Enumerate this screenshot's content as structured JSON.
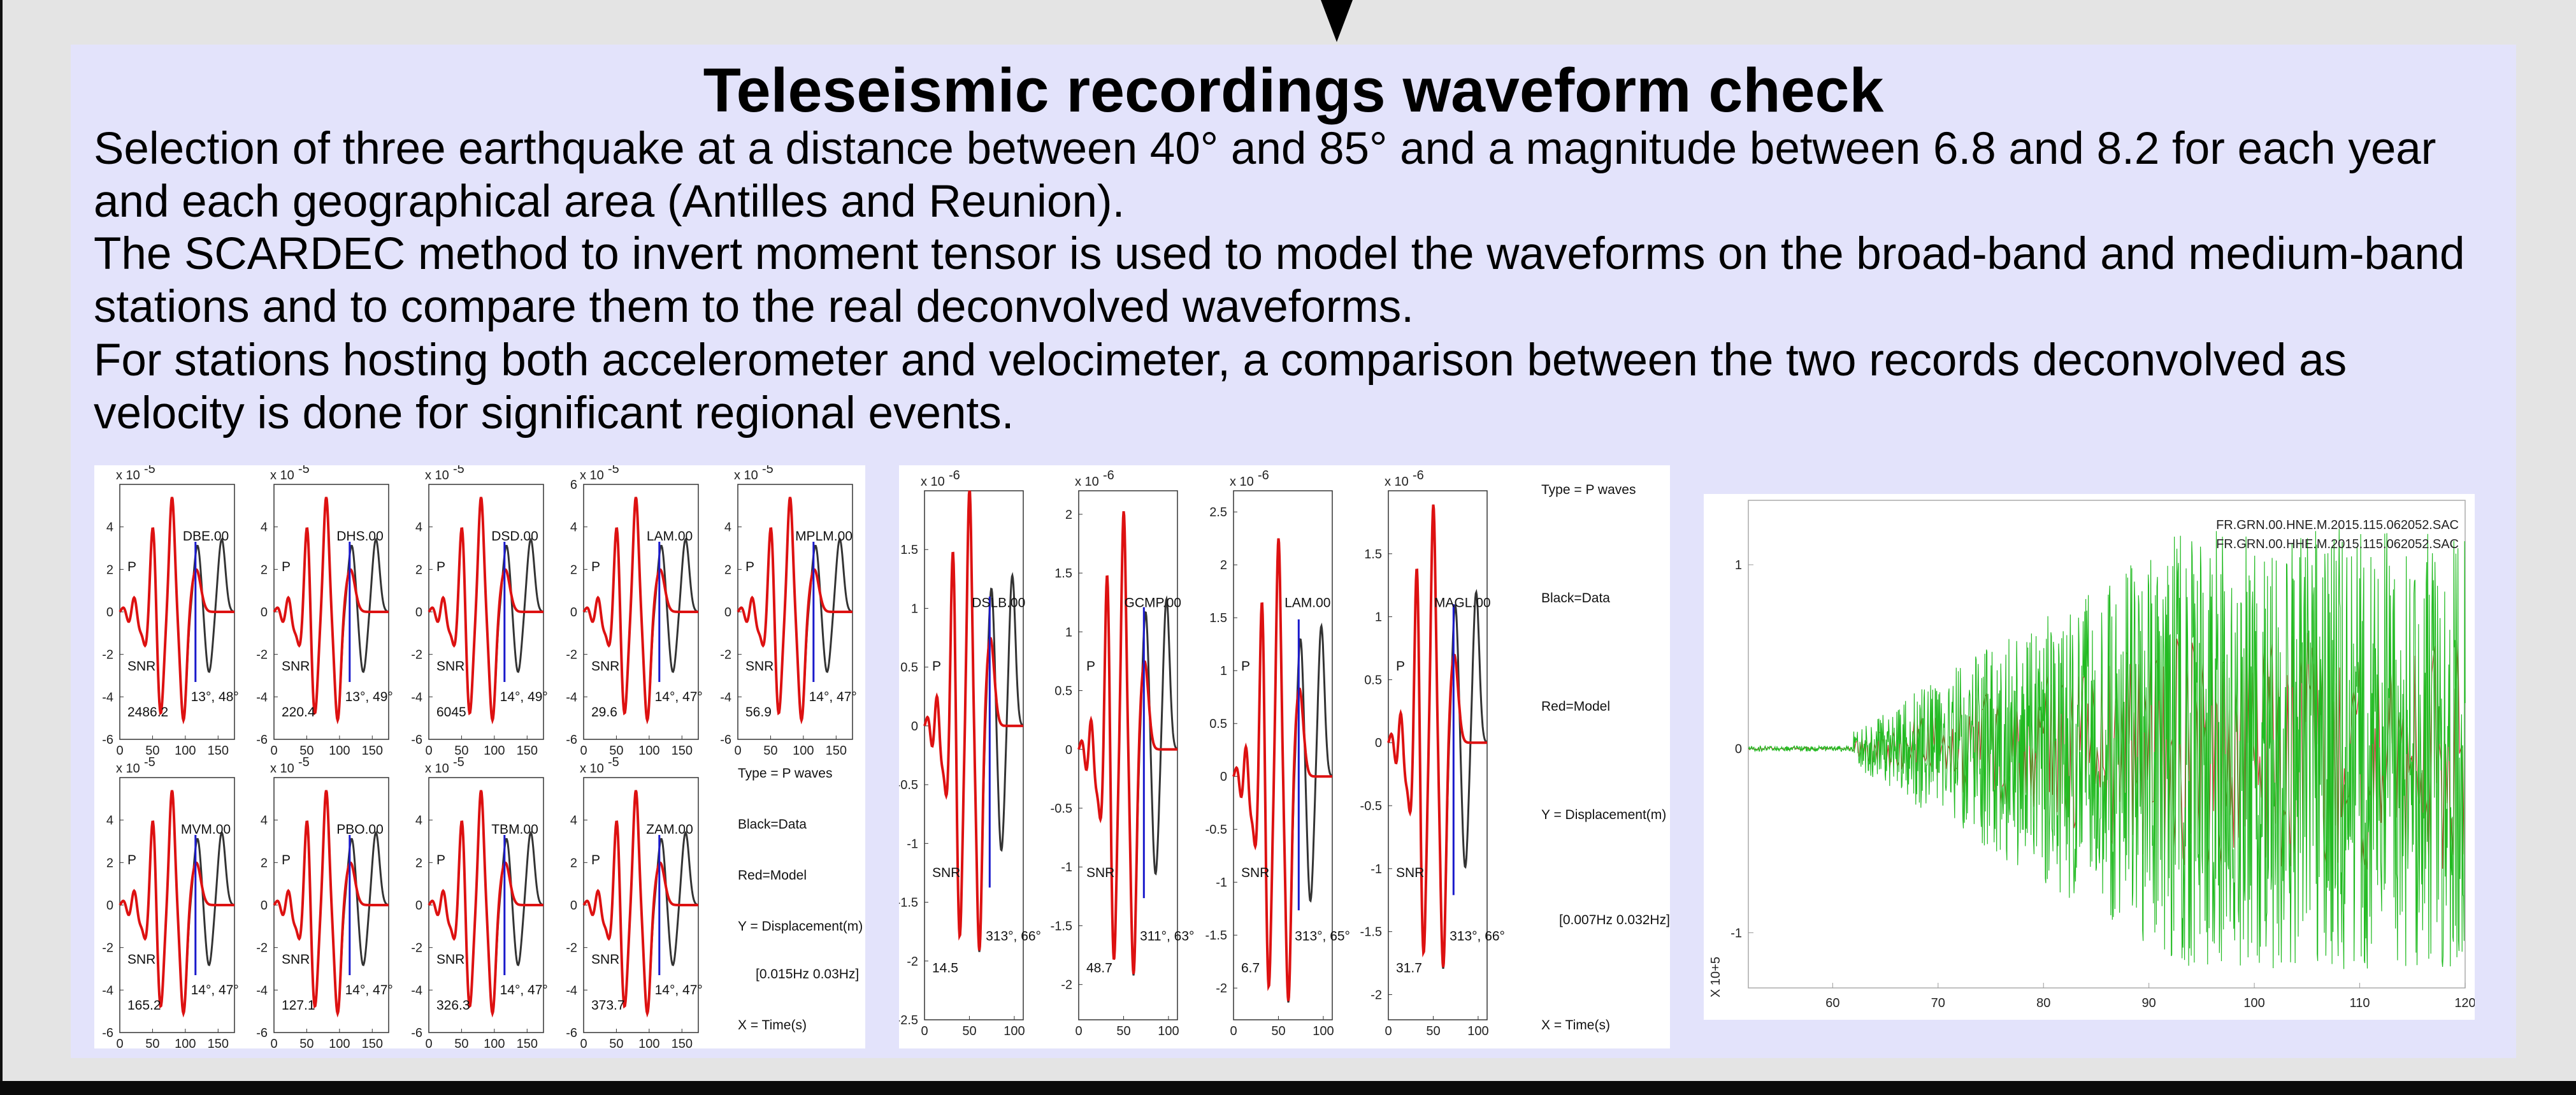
{
  "slide": {
    "title": "Teleseismic recordings waveform check",
    "paragraphs": [
      "Selection of three earthquake at a distance between 40° and 85° and a magnitude between 6.8 and 8.2 for each year and each geographical area (Antilles and Reunion).",
      "The SCARDEC method to invert moment tensor is used to model the waveforms on the broad-band and medium-band stations and to compare them to the real deconvolved waveforms.",
      "For stations hosting both accelerometer and velocimeter, a comparison between the two records deconvolved as velocity is done for significant regional events."
    ]
  },
  "colors": {
    "panel_bg": "#e3e3fb",
    "data_line": "#333333",
    "model_line": "#dd1111",
    "marker": "#1a1acc",
    "green_trace": "#22bb22",
    "red_trace": "#cc3333"
  },
  "chart_data": [
    {
      "type": "line",
      "figure": "figure-1",
      "legend": [
        "Type = P waves",
        "Black=Data",
        "Red=Model",
        "Y = Displacement(m)",
        "[0.015Hz 0.03Hz]",
        "X = Time(s)"
      ],
      "xticks": [
        0,
        50,
        100,
        150
      ],
      "xlim": [
        0,
        175
      ],
      "phase": "P",
      "snr_label": "SNR",
      "panels": [
        {
          "station": "DBE.00",
          "scale": "x 10",
          "exp": "-5",
          "yticks": [
            -6,
            -4,
            -2,
            0,
            2,
            4
          ],
          "ylim": [
            -6,
            6
          ],
          "snr": "2486.2",
          "angles": "13°, 48°"
        },
        {
          "station": "DHS.00",
          "scale": "x 10",
          "exp": "-5",
          "yticks": [
            -6,
            -4,
            -2,
            0,
            2,
            4
          ],
          "ylim": [
            -6,
            6
          ],
          "snr": "220.4",
          "angles": "13°, 49°"
        },
        {
          "station": "DSD.00",
          "scale": "x 10",
          "exp": "-5",
          "yticks": [
            -6,
            -4,
            -2,
            0,
            2,
            4
          ],
          "ylim": [
            -6,
            6
          ],
          "snr": "6045",
          "angles": "14°, 49°"
        },
        {
          "station": "LAM.00",
          "scale": "x 10",
          "exp": "-5",
          "yticks": [
            -6,
            -4,
            -2,
            0,
            2,
            4,
            6
          ],
          "ylim": [
            -6,
            6
          ],
          "snr": "29.6",
          "angles": "14°, 47°"
        },
        {
          "station": "MPLM.00",
          "scale": "x 10",
          "exp": "-5",
          "yticks": [
            -6,
            -4,
            -2,
            0,
            2,
            4
          ],
          "ylim": [
            -6,
            6
          ],
          "snr": "56.9",
          "angles": "14°, 47°"
        },
        {
          "station": "MVM.00",
          "scale": "x 10",
          "exp": "-5",
          "yticks": [
            -6,
            -4,
            -2,
            0,
            2,
            4
          ],
          "ylim": [
            -6,
            6
          ],
          "snr": "165.2",
          "angles": "14°, 47°"
        },
        {
          "station": "PBO.00",
          "scale": "x 10",
          "exp": "-5",
          "yticks": [
            -6,
            -4,
            -2,
            0,
            2,
            4
          ],
          "ylim": [
            -6,
            6
          ],
          "snr": "127.1",
          "angles": "14°, 47°"
        },
        {
          "station": "TBM.00",
          "scale": "x 10",
          "exp": "-5",
          "yticks": [
            -6,
            -4,
            -2,
            0,
            2,
            4
          ],
          "ylim": [
            -6,
            6
          ],
          "snr": "326.3",
          "angles": "14°, 47°"
        },
        {
          "station": "ZAM.00",
          "scale": "x 10",
          "exp": "-5",
          "yticks": [
            -6,
            -4,
            -2,
            0,
            2,
            4
          ],
          "ylim": [
            -6,
            6
          ],
          "snr": "373.7",
          "angles": "14°, 47°"
        }
      ]
    },
    {
      "type": "line",
      "figure": "figure-2",
      "legend": [
        "Type = P waves",
        "Black=Data",
        "Red=Model",
        "Y = Displacement(m)",
        "[0.007Hz 0.032Hz]",
        "X = Time(s)"
      ],
      "xticks": [
        0,
        50,
        100
      ],
      "xlim": [
        0,
        110
      ],
      "phase": "P",
      "snr_label": "SNR",
      "panels": [
        {
          "station": "DSLB.00",
          "scale": "x 10",
          "exp": "-6",
          "yticks": [
            -2.5,
            -2,
            -1.5,
            -1,
            -0.5,
            0,
            0.5,
            1,
            1.5
          ],
          "ylim": [
            -2.5,
            2
          ],
          "snr": "14.5",
          "angles": "313°, 66°"
        },
        {
          "station": "GCMP.00",
          "scale": "x 10",
          "exp": "-6",
          "yticks": [
            -2,
            -1.5,
            -1,
            -0.5,
            0,
            0.5,
            1,
            1.5,
            2
          ],
          "ylim": [
            -2.3,
            2.2
          ],
          "snr": "48.7",
          "angles": "311°, 63°"
        },
        {
          "station": "LAM.00",
          "scale": "x 10",
          "exp": "-6",
          "yticks": [
            -2,
            -1.5,
            -1,
            -0.5,
            0,
            0.5,
            1,
            1.5,
            2,
            2.5
          ],
          "ylim": [
            -2.3,
            2.7
          ],
          "snr": "6.7",
          "angles": "313°, 65°"
        },
        {
          "station": "MAGL.00",
          "scale": "x 10",
          "exp": "-6",
          "yticks": [
            -2,
            -1.5,
            -1,
            -0.5,
            0,
            0.5,
            1,
            1.5
          ],
          "ylim": [
            -2.2,
            2
          ],
          "snr": "31.7",
          "angles": "313°, 66°"
        }
      ]
    },
    {
      "type": "line",
      "figure": "figure-3",
      "series": [
        {
          "name": "FR.GRN.00.HNE.M.2015.115.062052.SAC",
          "color": "#cc3333"
        },
        {
          "name": "FR.GRN.00.HHE.M.2015.115.062052.SAC",
          "color": "#22bb22"
        }
      ],
      "xticks": [
        60,
        70,
        80,
        90,
        100,
        110,
        120
      ],
      "xlim": [
        52,
        120
      ],
      "yticks": [
        -1,
        0,
        1
      ],
      "ylim": [
        -1.3,
        1.35
      ],
      "y_multiplier": "X 10+5"
    }
  ]
}
